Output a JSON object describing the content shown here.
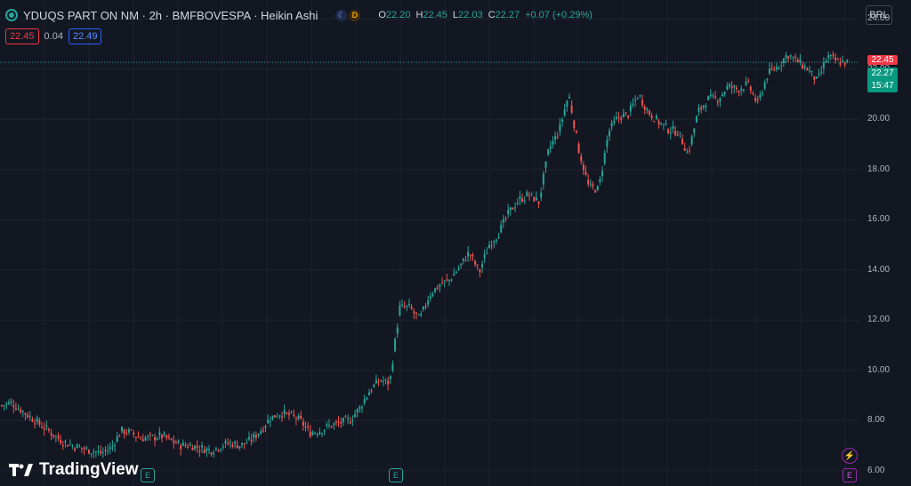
{
  "header": {
    "title": "YDUQS PART ON NM · 2h · BMFBOVESPA · Heikin Ashi",
    "market_icons": [
      "moon-icon",
      "delay-icon"
    ],
    "delay_badge": "D",
    "ohlc": {
      "o_label": "O",
      "o": "22.20",
      "h_label": "H",
      "h": "22.45",
      "l_label": "L",
      "l": "22.03",
      "c_label": "C",
      "c": "22.27",
      "change": "+0.07 (+0.29%)"
    }
  },
  "trade": {
    "bid": "22.45",
    "spread": "0.04",
    "ask": "22.49"
  },
  "currency": "BRL",
  "price_tags": {
    "bid": "22.45",
    "last": "22.27",
    "countdown": "15:47"
  },
  "brand": "TradingView",
  "events": {
    "earnings_label": "E"
  },
  "colors": {
    "up": "#26a69a",
    "down": "#ef5350",
    "bid": "#f23645",
    "ask": "#2962ff",
    "background": "#131722"
  },
  "chart_data": {
    "type": "line",
    "style": "Heikin Ashi candles",
    "ylim": [
      5.6,
      24.4
    ],
    "yticks": [
      "24.00",
      "22.00",
      "20.00",
      "18.00",
      "16.00",
      "14.00",
      "12.00",
      "10.00",
      "8.00",
      "6.00"
    ],
    "series": [
      {
        "values": [
          8.6,
          8.7,
          8.4,
          8.1,
          7.8,
          7.5,
          7.2,
          7.0,
          6.9,
          6.8,
          6.7,
          6.9,
          7.6,
          7.5,
          7.3,
          7.3,
          7.4,
          7.2,
          7.0,
          7.0,
          6.9,
          6.8,
          7.0,
          7.1,
          7.0,
          7.2,
          7.6,
          8.1,
          8.3,
          8.2,
          8.0,
          7.5,
          7.6,
          7.8,
          7.9,
          8.0,
          8.5,
          9.2,
          9.6,
          9.5,
          12.5,
          12.5,
          12.0,
          13.0,
          13.4,
          13.6,
          14.1,
          14.7,
          13.9,
          15.0,
          15.5,
          16.3,
          16.8,
          17.0,
          16.7,
          18.8,
          19.5,
          21.0,
          18.8,
          17.3,
          17.2,
          19.5,
          20.1,
          20.2,
          21.0,
          20.3,
          19.9,
          19.6,
          19.5,
          18.6,
          20.3,
          20.8,
          20.8,
          21.3,
          21.2,
          21.4,
          20.6,
          21.8,
          22.1,
          22.6,
          22.3,
          22.0,
          21.5,
          22.5,
          22.3,
          22.27
        ]
      }
    ]
  }
}
